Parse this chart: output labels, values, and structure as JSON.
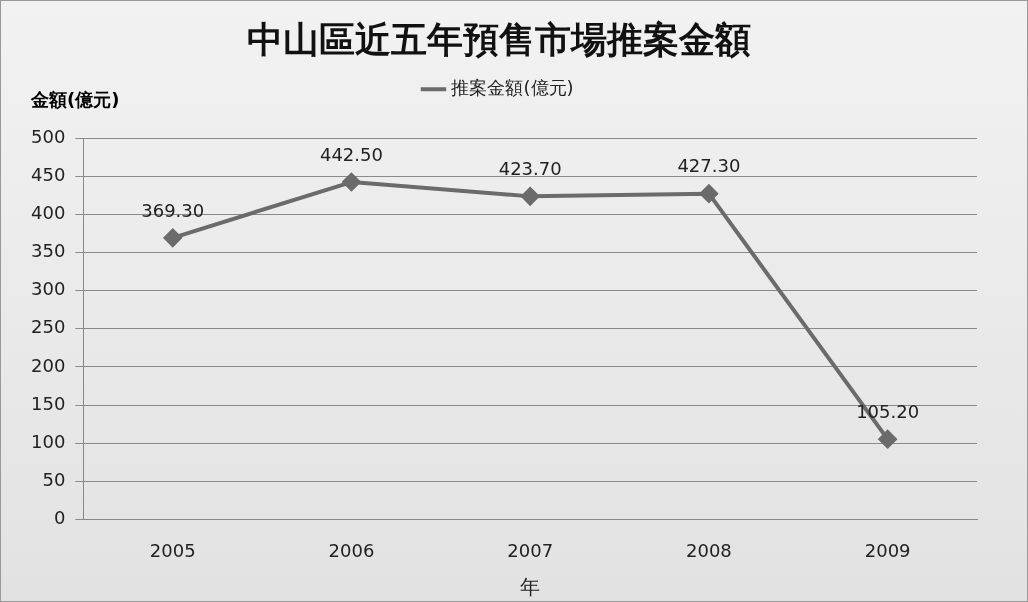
{
  "chart_data": {
    "type": "line",
    "title": "中山區近五年預售市場推案金額",
    "xlabel": "年",
    "ylabel": "金額(億元)",
    "categories": [
      "2005",
      "2006",
      "2007",
      "2008",
      "2009"
    ],
    "series": [
      {
        "name": "推案金額(億元)",
        "color": "#6b6b6b",
        "values": [
          369.3,
          442.5,
          423.7,
          427.3,
          105.2
        ]
      }
    ],
    "value_labels": [
      "369.30",
      "442.50",
      "423.70",
      "427.30",
      "105.20"
    ],
    "ylim": [
      0,
      500
    ],
    "yticks": [
      0,
      50,
      100,
      150,
      200,
      250,
      300,
      350,
      400,
      450,
      500
    ],
    "grid": "y",
    "legend": "top",
    "marker": "diamond",
    "line_style": "solid"
  }
}
